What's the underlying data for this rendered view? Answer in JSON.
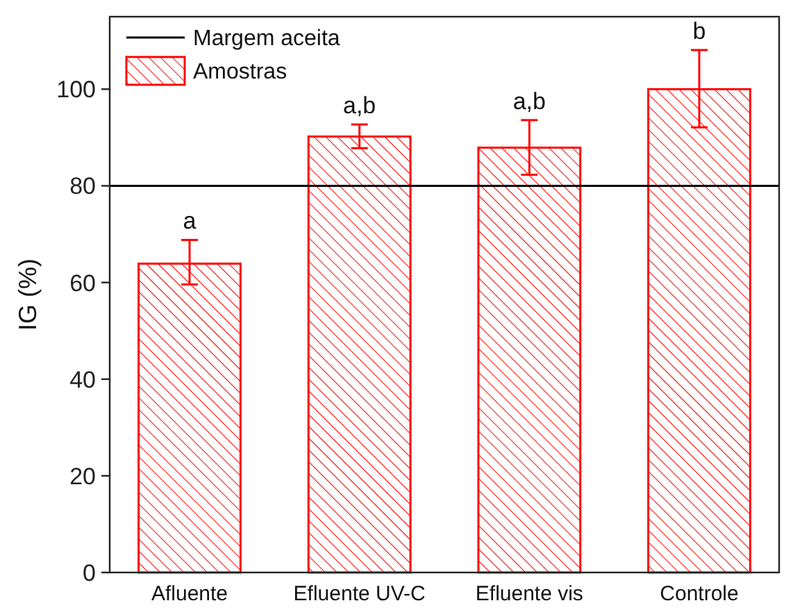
{
  "chart_data": {
    "type": "bar",
    "ylabel": "IG (%)",
    "categories": [
      "Afluente",
      "Efluente UV-C",
      "Efluente vis",
      "Controle"
    ],
    "series": [
      {
        "name": "Amostras",
        "color": "#ff0000",
        "values": [
          63.9,
          90.2,
          87.9,
          100
        ],
        "errors": [
          [
            59.6,
            68.8
          ],
          [
            87.8,
            92.7
          ],
          [
            82.3,
            93.6
          ],
          [
            92.1,
            108.1
          ]
        ]
      }
    ],
    "ylim": [
      0,
      115
    ],
    "yticks": [
      0,
      20,
      40,
      60,
      80,
      100
    ],
    "ref_lines": [
      {
        "axis": "y",
        "value": 80,
        "label": "Margem aceita",
        "color": "#000000",
        "line_style": "solid"
      }
    ],
    "annotations": [
      {
        "text": "a",
        "x": "Afluente",
        "y": 68.8
      },
      {
        "text": "a,b",
        "x": "Efluente UV-C",
        "y": 92.7
      },
      {
        "text": "a,b",
        "x": "Efluente vis",
        "y": 93.6
      },
      {
        "text": "b",
        "x": "Controle",
        "y": 108.1
      }
    ],
    "legend": "top left",
    "grid": false
  }
}
